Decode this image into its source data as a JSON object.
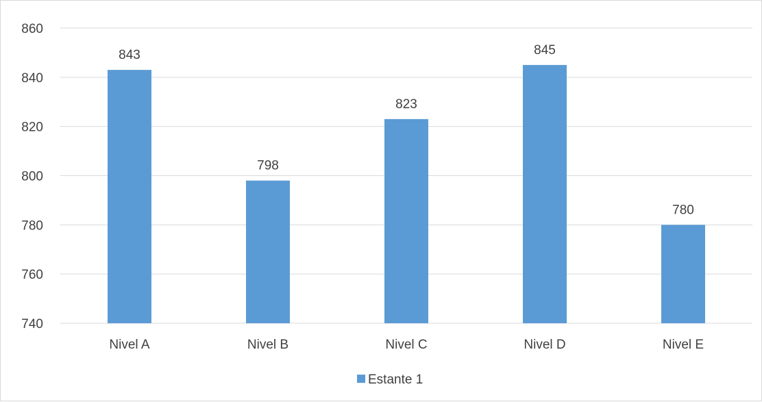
{
  "chart_data": {
    "type": "bar",
    "categories": [
      "Nivel A",
      "Nivel B",
      "Nivel C",
      "Nivel D",
      "Nivel E"
    ],
    "series": [
      {
        "name": "Estante 1",
        "values": [
          843,
          798,
          823,
          845,
          780
        ],
        "color": "#5b9bd5"
      }
    ],
    "ylim": [
      740,
      860
    ],
    "yticks": [
      740,
      760,
      780,
      800,
      820,
      840,
      860
    ],
    "grid": true,
    "data_labels": true,
    "legend": "bottom",
    "title": "",
    "xlabel": "",
    "ylabel": ""
  },
  "colors": {
    "gridline": "#d9d9d9",
    "axis_text": "#404040"
  }
}
